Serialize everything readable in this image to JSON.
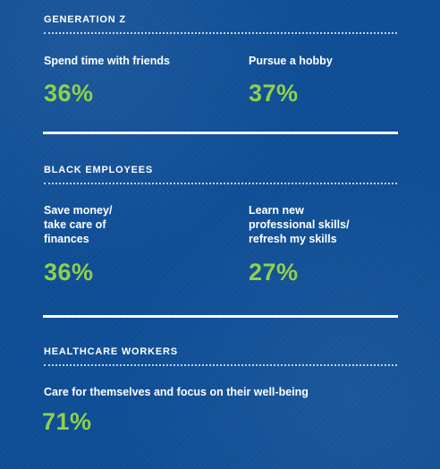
{
  "sections": [
    {
      "title": "GENERATION Z",
      "items": [
        {
          "label": "Spend time with friends",
          "value": "36%"
        },
        {
          "label": "Pursue a hobby",
          "value": "37%"
        }
      ]
    },
    {
      "title": "BLACK EMPLOYEES",
      "items": [
        {
          "label": "Save money/\ntake care of\nfinances",
          "value": "36%"
        },
        {
          "label": "Learn new\nprofessional skills/\nrefresh my skills",
          "value": "27%"
        }
      ]
    },
    {
      "title": "HEALTHCARE WORKERS",
      "items": [
        {
          "label": "Care for themselves and focus on their well-being",
          "value": "71%"
        }
      ]
    }
  ],
  "colors": {
    "background": "#0f4e96",
    "accent": "#8fd14a",
    "text": "#ffffff"
  }
}
